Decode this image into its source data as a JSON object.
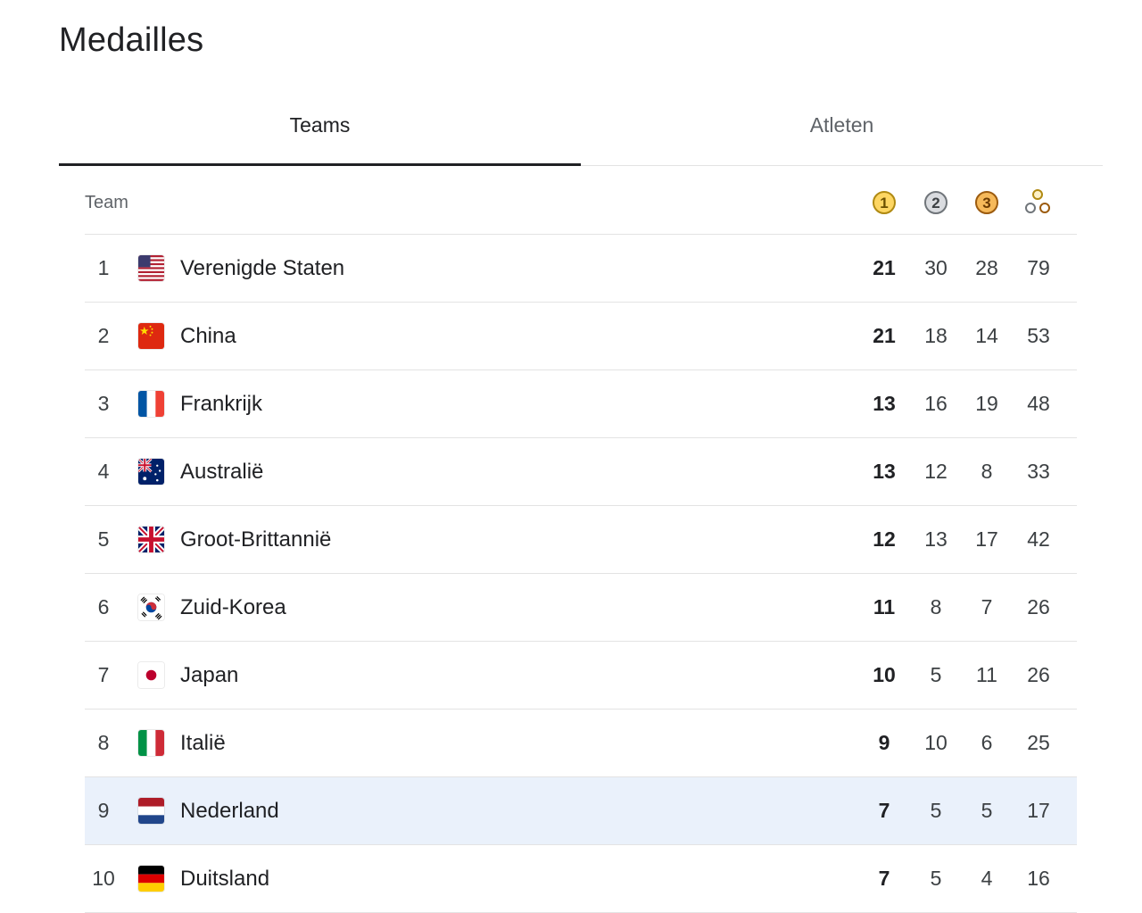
{
  "page": {
    "title": "Medailles"
  },
  "tabs": [
    {
      "label": "Teams",
      "active": true
    },
    {
      "label": "Atleten",
      "active": false
    }
  ],
  "table": {
    "header": {
      "team_label": "Team",
      "gold_icon_label": "1",
      "silver_icon_label": "2",
      "bronze_icon_label": "3",
      "total_icon": "medals-total-icon"
    },
    "rows": [
      {
        "rank": "1",
        "country": "Verenigde Staten",
        "flag": "us-flag-icon",
        "gold": "21",
        "silver": "30",
        "bronze": "28",
        "total": "79"
      },
      {
        "rank": "2",
        "country": "China",
        "flag": "cn-flag-icon",
        "gold": "21",
        "silver": "18",
        "bronze": "14",
        "total": "53"
      },
      {
        "rank": "3",
        "country": "Frankrijk",
        "flag": "fr-flag-icon",
        "gold": "13",
        "silver": "16",
        "bronze": "19",
        "total": "48"
      },
      {
        "rank": "4",
        "country": "Australië",
        "flag": "au-flag-icon",
        "gold": "13",
        "silver": "12",
        "bronze": "8",
        "total": "33"
      },
      {
        "rank": "5",
        "country": "Groot-Brittannië",
        "flag": "gb-flag-icon",
        "gold": "12",
        "silver": "13",
        "bronze": "17",
        "total": "42"
      },
      {
        "rank": "6",
        "country": "Zuid-Korea",
        "flag": "kr-flag-icon",
        "gold": "11",
        "silver": "8",
        "bronze": "7",
        "total": "26"
      },
      {
        "rank": "7",
        "country": "Japan",
        "flag": "jp-flag-icon",
        "gold": "10",
        "silver": "5",
        "bronze": "11",
        "total": "26"
      },
      {
        "rank": "8",
        "country": "Italië",
        "flag": "it-flag-icon",
        "gold": "9",
        "silver": "10",
        "bronze": "6",
        "total": "25"
      },
      {
        "rank": "9",
        "country": "Nederland",
        "flag": "nl-flag-icon",
        "gold": "7",
        "silver": "5",
        "bronze": "5",
        "total": "17",
        "highlighted": true
      },
      {
        "rank": "10",
        "country": "Duitsland",
        "flag": "de-flag-icon",
        "gold": "7",
        "silver": "5",
        "bronze": "4",
        "total": "16"
      }
    ]
  },
  "colors": {
    "highlight_row": "#eaf1fb",
    "gold": "#fdd663",
    "silver": "#dadce0",
    "bronze": "#f6b95a",
    "active_tab_indicator": "#202124"
  }
}
